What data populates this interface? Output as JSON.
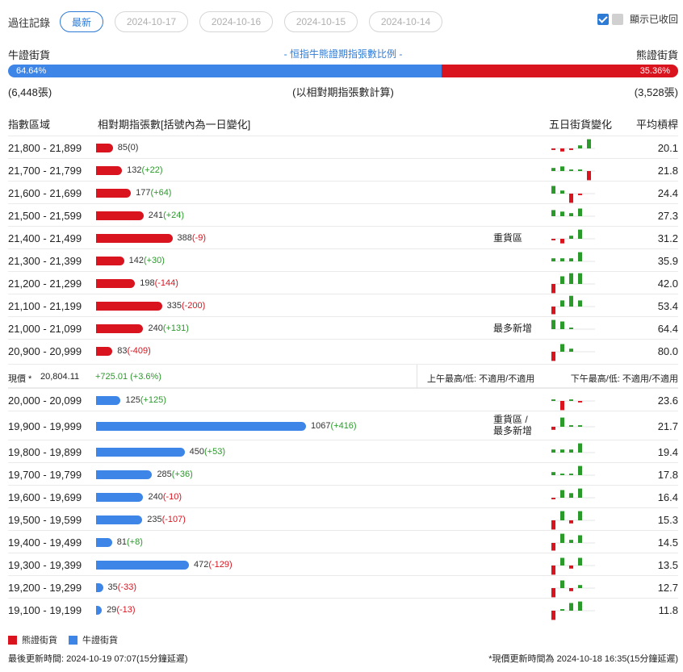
{
  "history": {
    "label": "過往記錄",
    "tabs": [
      "最新",
      "2024-10-17",
      "2024-10-16",
      "2024-10-15",
      "2024-10-14"
    ],
    "active_index": 0,
    "show_recalled_label": "顯示已收回"
  },
  "ratio": {
    "bull_label": "牛證街貨",
    "title": "- 恒指牛熊證期指張數比例 -",
    "bear_label": "熊證街貨",
    "bull_pct_text": "64.64%",
    "bear_pct_text": "35.36%",
    "bull_fraction": 0.6464,
    "bull_count": "(6,448張)",
    "note": "(以相對期指張數計算)",
    "bear_count": "(3,528張)"
  },
  "table": {
    "col_range": "指數區域",
    "col_contracts": "相對期指張數[括號內為一日變化]",
    "col_five_day": "五日街貨變化",
    "col_avg": "平均槓桿",
    "bear_rows": [
      {
        "range": "21,800 - 21,899",
        "value": 85,
        "value_text": "85",
        "change": "(0)",
        "change_sign": "zero",
        "tag": "",
        "avg": "20.1",
        "spark": [
          -1,
          -2,
          -1,
          2,
          6
        ]
      },
      {
        "range": "21,700 - 21,799",
        "value": 132,
        "value_text": "132",
        "change": "(+22)",
        "change_sign": "pos",
        "tag": "",
        "avg": "21.8",
        "spark": [
          2,
          3,
          1,
          1,
          -6
        ]
      },
      {
        "range": "21,600 - 21,699",
        "value": 177,
        "value_text": "177",
        "change": "(+64)",
        "change_sign": "pos",
        "tag": "",
        "avg": "24.4",
        "spark": [
          5,
          2,
          -6,
          -1,
          0
        ]
      },
      {
        "range": "21,500 - 21,599",
        "value": 241,
        "value_text": "241",
        "change": "(+24)",
        "change_sign": "pos",
        "tag": "",
        "avg": "27.3",
        "spark": [
          4,
          3,
          2,
          5,
          0
        ]
      },
      {
        "range": "21,400 - 21,499",
        "value": 388,
        "value_text": "388",
        "change": "(-9)",
        "change_sign": "neg",
        "tag": "重貨區",
        "avg": "31.2",
        "spark": [
          -1,
          -3,
          2,
          6,
          0
        ]
      },
      {
        "range": "21,300 - 21,399",
        "value": 142,
        "value_text": "142",
        "change": "(+30)",
        "change_sign": "pos",
        "tag": "",
        "avg": "35.9",
        "spark": [
          2,
          2,
          2,
          6,
          0
        ]
      },
      {
        "range": "21,200 - 21,299",
        "value": 198,
        "value_text": "198",
        "change": "(-144)",
        "change_sign": "neg",
        "tag": "",
        "avg": "42.0",
        "spark": [
          -6,
          5,
          7,
          7,
          0
        ]
      },
      {
        "range": "21,100 - 21,199",
        "value": 335,
        "value_text": "335",
        "change": "(-200)",
        "change_sign": "neg",
        "tag": "",
        "avg": "53.4",
        "spark": [
          -5,
          4,
          7,
          4,
          0
        ]
      },
      {
        "range": "21,000 - 21,099",
        "value": 240,
        "value_text": "240",
        "change": "(+131)",
        "change_sign": "pos",
        "tag": "最多新增",
        "avg": "64.4",
        "spark": [
          6,
          5,
          1,
          0,
          0
        ]
      },
      {
        "range": "20,900 - 20,999",
        "value": 83,
        "value_text": "83",
        "change": "(-409)",
        "change_sign": "neg",
        "tag": "",
        "avg": "80.0",
        "spark": [
          -6,
          5,
          2,
          0,
          0
        ]
      }
    ],
    "spot": {
      "label": "現價 *",
      "price": "20,804.11",
      "change": "+725.01 (+3.6%)",
      "am_range": "上午最高/低: 不適用/不適用",
      "pm_range": "下午最高/低: 不適用/不適用"
    },
    "bull_rows": [
      {
        "range": "20,000 - 20,099",
        "value": 125,
        "value_text": "125",
        "change": "(+125)",
        "change_sign": "pos",
        "tag": "",
        "avg": "23.6",
        "spark": [
          1,
          -6,
          1,
          -1,
          0
        ]
      },
      {
        "range": "19,900 - 19,999",
        "value": 1067,
        "value_text": "1067",
        "change": "(+416)",
        "change_sign": "pos",
        "tag": "重貨區 /\n最多新增",
        "avg": "21.7",
        "spark": [
          -2,
          6,
          1,
          1,
          0
        ]
      },
      {
        "range": "19,800 - 19,899",
        "value": 450,
        "value_text": "450",
        "change": "(+53)",
        "change_sign": "pos",
        "tag": "",
        "avg": "19.4",
        "spark": [
          2,
          2,
          2,
          6,
          0
        ]
      },
      {
        "range": "19,700 - 19,799",
        "value": 285,
        "value_text": "285",
        "change": "(+36)",
        "change_sign": "pos",
        "tag": "",
        "avg": "17.8",
        "spark": [
          2,
          1,
          1,
          6,
          0
        ]
      },
      {
        "range": "19,600 - 19,699",
        "value": 240,
        "value_text": "240",
        "change": "(-10)",
        "change_sign": "neg",
        "tag": "",
        "avg": "16.4",
        "spark": [
          -1,
          5,
          3,
          6,
          0
        ]
      },
      {
        "range": "19,500 - 19,599",
        "value": 235,
        "value_text": "235",
        "change": "(-107)",
        "change_sign": "neg",
        "tag": "",
        "avg": "15.3",
        "spark": [
          -6,
          6,
          -2,
          6,
          0
        ]
      },
      {
        "range": "19,400 - 19,499",
        "value": 81,
        "value_text": "81",
        "change": "(+8)",
        "change_sign": "pos",
        "tag": "",
        "avg": "14.5",
        "spark": [
          -5,
          6,
          2,
          5,
          0
        ]
      },
      {
        "range": "19,300 - 19,399",
        "value": 472,
        "value_text": "472",
        "change": "(-129)",
        "change_sign": "neg",
        "tag": "",
        "avg": "13.5",
        "spark": [
          -6,
          5,
          -2,
          5,
          0
        ]
      },
      {
        "range": "19,200 - 19,299",
        "value": 35,
        "value_text": "35",
        "change": "(-33)",
        "change_sign": "neg",
        "tag": "",
        "avg": "12.7",
        "spark": [
          -6,
          5,
          -2,
          2,
          0
        ]
      },
      {
        "range": "19,100 - 19,199",
        "value": 29,
        "value_text": "29",
        "change": "(-13)",
        "change_sign": "neg",
        "tag": "",
        "avg": "11.8",
        "spark": [
          -6,
          1,
          5,
          6,
          0
        ]
      }
    ]
  },
  "legend": {
    "bear": "熊證街貨",
    "bull": "牛證街貨"
  },
  "footer": {
    "last_update": "最後更新時間: 2024-10-19 07:07(15分鐘延遲)",
    "spot_update": "*現價更新時間為 2024-10-18 16:35(15分鐘延遲)"
  },
  "colors": {
    "bear": "#d9141f",
    "bull": "#3d85e6",
    "up": "#2a9a2a",
    "accent": "#2e7bd6"
  }
}
